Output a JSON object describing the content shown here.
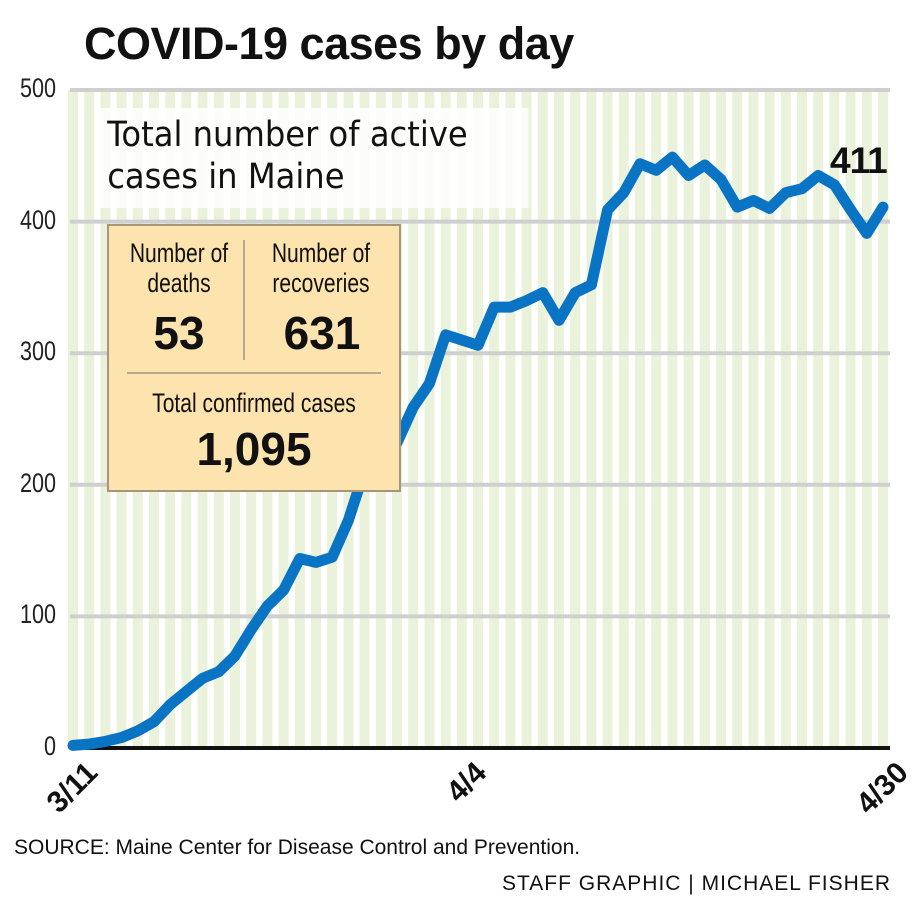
{
  "title": "COVID-19 cases by day",
  "subtitle": "Total number of active cases in Maine",
  "stats": {
    "deaths_label": "Number of deaths",
    "deaths_value": "53",
    "recoveries_label": "Number of recoveries",
    "recoveries_value": "631",
    "total_label": "Total confirmed cases",
    "total_value": "1,095"
  },
  "last_value_label": "411",
  "source": "SOURCE: Maine Center for Disease Control and Prevention.",
  "credit": "STAFF GRAPHIC | MICHAEL FISHER",
  "colors": {
    "line": "#0a74c4",
    "stripe": "#eaf2dc",
    "grid": "#cfcfcf",
    "box": "#fde3ae"
  },
  "chart_data": {
    "type": "line",
    "title": "COVID-19 cases by day",
    "subtitle": "Total number of active cases in Maine",
    "xlabel": "",
    "ylabel": "",
    "ylim": [
      0,
      500
    ],
    "yticks": [
      "0",
      "100",
      "200",
      "300",
      "400",
      "500"
    ],
    "x_start": "3/11",
    "x_end": "4/30",
    "xticks": [
      {
        "label": "3/11",
        "day": 0
      },
      {
        "label": "4/4",
        "day": 24
      },
      {
        "label": "4/30",
        "day": 50
      }
    ],
    "grid": true,
    "series": [
      {
        "name": "Active cases",
        "values": [
          2,
          3,
          5,
          8,
          13,
          20,
          33,
          43,
          53,
          58,
          70,
          90,
          108,
          120,
          144,
          141,
          145,
          173,
          211,
          222,
          232,
          259,
          277,
          314,
          310,
          306,
          335,
          335,
          340,
          346,
          325,
          346,
          352,
          409,
          422,
          444,
          439,
          449,
          435,
          443,
          432,
          411,
          416,
          410,
          422,
          425,
          435,
          428,
          409,
          391,
          411
        ]
      }
    ]
  }
}
